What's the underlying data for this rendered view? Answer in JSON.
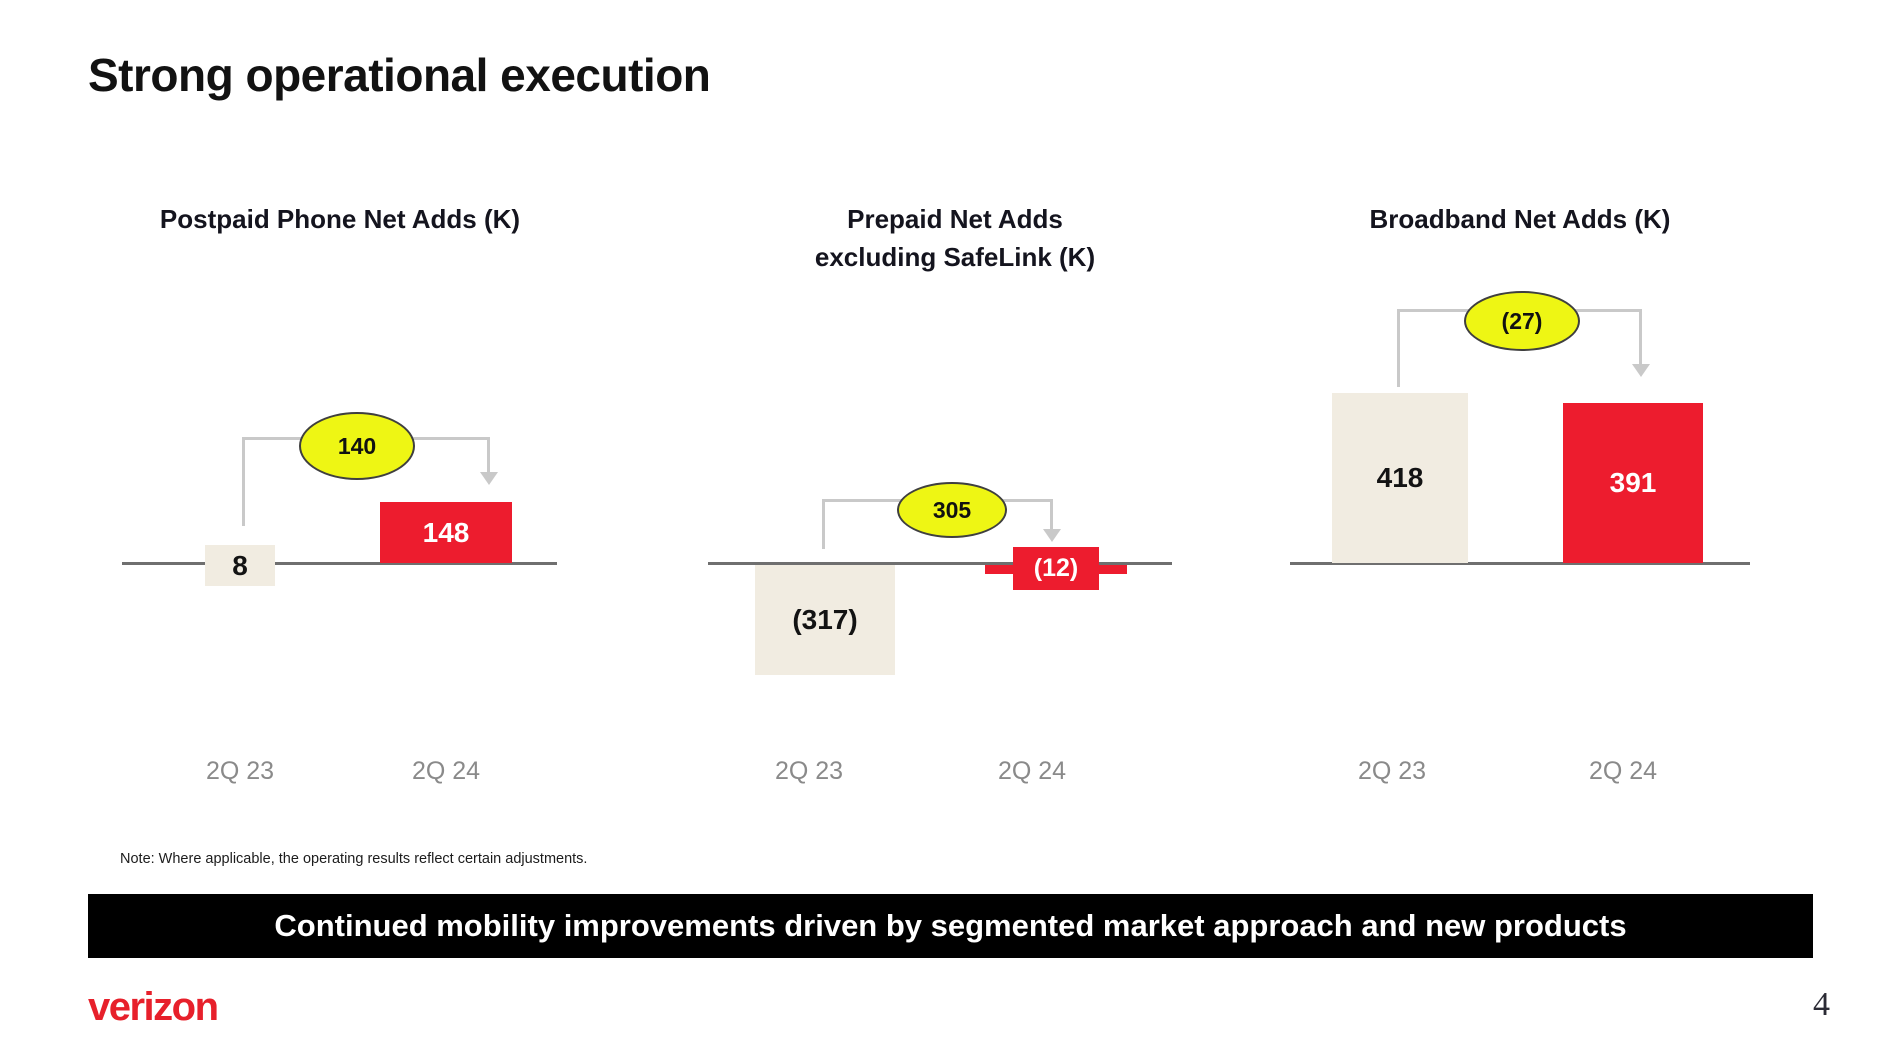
{
  "slide": {
    "title": "Strong operational execution",
    "note": "Note:  Where applicable, the operating results reflect certain adjustments.",
    "banner": "Continued mobility improvements driven by segmented market approach and new products"
  },
  "footer": {
    "brand": "verizon",
    "page": "4"
  },
  "colors": {
    "bar_2q23": "#f1ece1",
    "bar_2q24": "#ed1c2e",
    "callout_fill": "#eef614",
    "callout_border": "#3f3f3f",
    "connector": "#c9c9c9",
    "axis": "#6f6f6f",
    "axis_label_gray": "#8a8a8a",
    "banner_bg": "#000000",
    "banner_text": "#ffffff",
    "brand_red": "#e7202b"
  },
  "chart_data": [
    {
      "type": "bar",
      "title_lines": [
        "Postpaid Phone Net Adds (K)"
      ],
      "categories": [
        "2Q 23",
        "2Q 24"
      ],
      "series": [
        {
          "name": "Postpaid Phone Net Adds (K)",
          "values": [
            8,
            148
          ]
        }
      ],
      "value_labels": [
        "8",
        "148"
      ],
      "change_value": 140,
      "change_label": "140",
      "baseline": 0,
      "grid": false,
      "legend": false
    },
    {
      "type": "bar",
      "title_lines": [
        "Prepaid Net Adds",
        "excluding SafeLink (K)"
      ],
      "categories": [
        "2Q 23",
        "2Q 24"
      ],
      "series": [
        {
          "name": "Prepaid Net Adds excluding SafeLink (K)",
          "values": [
            -317,
            -12
          ]
        }
      ],
      "value_labels": [
        "(317)",
        "(12)"
      ],
      "change_value": 305,
      "change_label": "305",
      "baseline": 0,
      "grid": false,
      "legend": false
    },
    {
      "type": "bar",
      "title_lines": [
        "Broadband Net Adds (K)"
      ],
      "categories": [
        "2Q 23",
        "2Q 24"
      ],
      "series": [
        {
          "name": "Broadband Net Adds (K)",
          "values": [
            418,
            391
          ]
        }
      ],
      "value_labels": [
        "418",
        "391"
      ],
      "change_value": -27,
      "change_label": "(27)",
      "baseline": 0,
      "grid": false,
      "legend": false
    }
  ]
}
